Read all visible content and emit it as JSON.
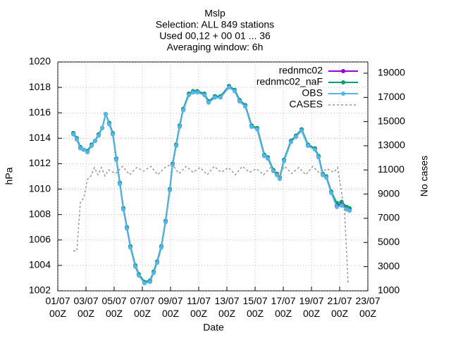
{
  "chart_data": {
    "type": "line",
    "title": "Mslp",
    "subtitle": [
      "Selection: ALL    849 stations",
      "Used 00,12 + 00 01 ... 36",
      "Averaging window:  6h"
    ],
    "x_label": "Date",
    "y_label": "hPa",
    "y2_label": "No cases",
    "xlim": [
      1,
      23
    ],
    "xticks": [
      {
        "value": 1,
        "label": "01/07\n00Z"
      },
      {
        "value": 3,
        "label": "03/07\n00Z"
      },
      {
        "value": 5,
        "label": "05/07\n00Z"
      },
      {
        "value": 7,
        "label": "07/07\n00Z"
      },
      {
        "value": 9,
        "label": "09/07\n00Z"
      },
      {
        "value": 11,
        "label": "11/07\n00Z"
      },
      {
        "value": 13,
        "label": "13/07\n00Z"
      },
      {
        "value": 15,
        "label": "15/07\n00Z"
      },
      {
        "value": 17,
        "label": "17/07\n00Z"
      },
      {
        "value": 19,
        "label": "19/07\n00Z"
      },
      {
        "value": 21,
        "label": "21/07\n00Z"
      },
      {
        "value": 23,
        "label": "23/07\n00Z"
      }
    ],
    "ylim": [
      1002,
      1020
    ],
    "yticks": [
      1002,
      1004,
      1006,
      1008,
      1010,
      1012,
      1014,
      1016,
      1018,
      1020
    ],
    "y2lim": [
      1000,
      19930
    ],
    "y2ticks": [
      1000,
      3000,
      5000,
      7000,
      9000,
      11000,
      13000,
      15000,
      17000,
      19000
    ],
    "grid": true,
    "legend": "top-right",
    "series": [
      {
        "name": "rednmc02",
        "color": "#9400d3",
        "x": [
          2.1,
          2.35,
          2.6,
          2.85,
          3.1,
          3.4,
          3.65,
          3.9,
          4.15,
          4.4,
          4.65,
          4.9,
          5.15,
          5.4,
          5.65,
          5.9,
          6.15,
          6.5,
          6.75,
          7.15,
          7.55,
          7.8,
          8.05,
          8.35,
          8.65,
          8.95,
          9.15,
          9.4,
          9.65,
          9.9,
          10.3,
          10.6,
          10.9,
          11.4,
          11.7,
          12.15,
          12.55,
          13.15,
          13.55,
          13.9,
          14.3,
          14.75,
          15.15,
          15.65,
          15.9,
          16.3,
          16.55,
          16.75,
          17.05,
          17.55,
          17.9,
          18.3,
          18.75,
          19.25,
          19.5,
          19.8,
          20.05,
          20.4,
          20.8,
          21.15,
          21.5,
          21.7
        ],
        "values": [
          1014.4,
          1014.0,
          1013.3,
          1013.1,
          1013.0,
          1013.5,
          1013.8,
          1014.3,
          1014.8,
          1015.9,
          1015.2,
          1014.4,
          1012.4,
          1010.5,
          1008.5,
          1007.0,
          1005.5,
          1004.0,
          1003.3,
          1002.7,
          1002.8,
          1003.5,
          1004.3,
          1005.5,
          1007.5,
          1010.0,
          1012.0,
          1013.5,
          1015.0,
          1016.3,
          1017.5,
          1017.7,
          1017.7,
          1017.5,
          1016.9,
          1017.3,
          1017.3,
          1018.1,
          1017.8,
          1017.0,
          1016.6,
          1015.0,
          1014.8,
          1012.7,
          1012.5,
          1011.5,
          1011.2,
          1010.9,
          1012.3,
          1013.8,
          1014.2,
          1014.7,
          1013.5,
          1013.2,
          1012.6,
          1011.2,
          1011.0,
          1009.8,
          1008.7,
          1008.8,
          1008.5,
          1008.4
        ]
      },
      {
        "name": "rednmc02_naF",
        "color": "#009e73",
        "x": [
          2.1,
          2.35,
          2.6,
          2.85,
          3.1,
          3.4,
          3.65,
          3.9,
          4.15,
          4.4,
          4.65,
          4.9,
          5.15,
          5.4,
          5.65,
          5.9,
          6.15,
          6.5,
          6.75,
          7.15,
          7.55,
          7.8,
          8.05,
          8.35,
          8.65,
          8.95,
          9.15,
          9.4,
          9.65,
          9.9,
          10.3,
          10.6,
          10.9,
          11.4,
          11.7,
          12.15,
          12.55,
          13.15,
          13.55,
          13.9,
          14.3,
          14.75,
          15.15,
          15.65,
          15.9,
          16.3,
          16.55,
          16.75,
          17.05,
          17.55,
          17.9,
          18.3,
          18.75,
          19.25,
          19.5,
          19.8,
          20.05,
          20.4,
          20.8,
          21.15,
          21.5,
          21.7
        ],
        "values": [
          1014.4,
          1014.0,
          1013.3,
          1013.1,
          1013.0,
          1013.5,
          1013.8,
          1014.3,
          1014.8,
          1015.9,
          1015.2,
          1014.4,
          1012.4,
          1010.5,
          1008.5,
          1007.0,
          1005.5,
          1004.0,
          1003.3,
          1002.7,
          1002.8,
          1003.5,
          1004.3,
          1005.5,
          1007.5,
          1010.0,
          1012.0,
          1013.5,
          1015.0,
          1016.3,
          1017.5,
          1017.7,
          1017.7,
          1017.5,
          1016.9,
          1017.3,
          1017.3,
          1018.1,
          1017.8,
          1017.0,
          1016.6,
          1015.0,
          1014.8,
          1012.7,
          1012.5,
          1011.5,
          1011.2,
          1010.9,
          1012.3,
          1013.8,
          1014.2,
          1014.7,
          1013.5,
          1013.2,
          1012.6,
          1011.2,
          1011.0,
          1009.8,
          1008.9,
          1009.0,
          1008.6,
          1008.5
        ]
      },
      {
        "name": "OBS",
        "color": "#56b4e9",
        "x": [
          2.1,
          2.35,
          2.6,
          2.85,
          3.1,
          3.4,
          3.65,
          3.9,
          4.15,
          4.4,
          4.65,
          4.9,
          5.15,
          5.4,
          5.65,
          5.9,
          6.15,
          6.5,
          6.75,
          7.15,
          7.55,
          7.8,
          8.05,
          8.35,
          8.65,
          8.95,
          9.15,
          9.4,
          9.65,
          9.9,
          10.3,
          10.6,
          10.9,
          11.4,
          11.7,
          12.15,
          12.55,
          13.15,
          13.55,
          13.9,
          14.3,
          14.75,
          15.15,
          15.65,
          15.9,
          16.3,
          16.55,
          16.75,
          17.05,
          17.55,
          17.9,
          18.3,
          18.75,
          19.25,
          19.5,
          19.8,
          20.05,
          20.4,
          20.8,
          21.15,
          21.5,
          21.7
        ],
        "values": [
          1014.3,
          1013.9,
          1013.2,
          1013.1,
          1012.9,
          1013.4,
          1013.8,
          1014.2,
          1014.8,
          1015.9,
          1015.1,
          1014.3,
          1012.3,
          1010.4,
          1008.4,
          1006.9,
          1005.4,
          1003.9,
          1003.2,
          1002.6,
          1002.7,
          1003.4,
          1004.2,
          1005.4,
          1007.4,
          1009.9,
          1011.9,
          1013.4,
          1014.9,
          1016.2,
          1017.4,
          1017.6,
          1017.6,
          1017.4,
          1016.8,
          1017.2,
          1017.2,
          1018.0,
          1017.7,
          1016.9,
          1016.5,
          1014.9,
          1014.7,
          1012.6,
          1012.4,
          1011.4,
          1011.1,
          1010.8,
          1012.2,
          1013.7,
          1014.1,
          1014.6,
          1013.4,
          1013.1,
          1012.5,
          1011.1,
          1010.9,
          1009.7,
          1008.6,
          1008.7,
          1008.4,
          1008.3
        ]
      },
      {
        "name": "CASES",
        "color": "#999999",
        "axis": "y2",
        "dashed": true,
        "x": [
          2.1,
          2.35,
          2.6,
          2.85,
          3.1,
          3.35,
          3.6,
          3.85,
          4.1,
          4.35,
          4.6,
          5.1,
          5.6,
          6.1,
          6.6,
          7.1,
          7.6,
          8.1,
          8.6,
          9.1,
          9.6,
          10.1,
          10.6,
          11.1,
          11.6,
          12.1,
          12.6,
          13.1,
          13.6,
          14.1,
          14.6,
          15.1,
          15.6,
          16.1,
          16.6,
          17.1,
          17.6,
          18.1,
          18.6,
          19.1,
          19.6,
          20.1,
          20.6,
          20.85,
          21.1,
          21.35,
          21.5,
          21.6
        ],
        "values": [
          4300,
          4300,
          8300,
          8700,
          10200,
          10500,
          11200,
          10600,
          11200,
          10500,
          11000,
          10700,
          11300,
          10600,
          11200,
          10900,
          11300,
          10600,
          11200,
          11500,
          10700,
          11300,
          10800,
          11200,
          10600,
          11300,
          10800,
          11200,
          10600,
          11300,
          10800,
          11100,
          10600,
          11200,
          10500,
          11300,
          10700,
          11200,
          10600,
          11300,
          10700,
          11100,
          10800,
          11200,
          9400,
          7500,
          4000,
          1500
        ]
      }
    ]
  }
}
